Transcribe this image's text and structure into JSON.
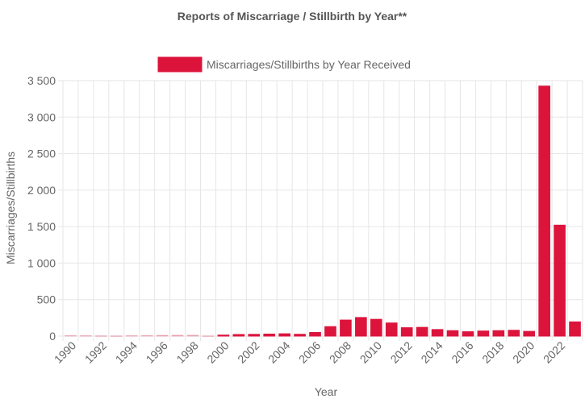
{
  "chart_data": {
    "type": "bar",
    "title": "Reports of Miscarriage / Stillbirth by Year**",
    "xlabel": "Year",
    "ylabel": "Miscarriages/Stillbirths",
    "ylim": [
      0,
      3500
    ],
    "yticks": [
      "0",
      "500",
      "1 000",
      "1 500",
      "2 000",
      "2 500",
      "3 000",
      "3 500"
    ],
    "legend_position": "top",
    "grid": true,
    "categories": [
      "1990",
      "1991",
      "1992",
      "1993",
      "1994",
      "1995",
      "1996",
      "1997",
      "1998",
      "1999",
      "2000",
      "2001",
      "2002",
      "2003",
      "2004",
      "2005",
      "2006",
      "2007",
      "2008",
      "2009",
      "2010",
      "2011",
      "2012",
      "2013",
      "2014",
      "2015",
      "2016",
      "2017",
      "2018",
      "2019",
      "2020",
      "2021",
      "2022",
      "2023"
    ],
    "tick_labels_shown": [
      "1990",
      "1992",
      "1994",
      "1996",
      "1998",
      "2000",
      "2002",
      "2004",
      "2006",
      "2008",
      "2010",
      "2012",
      "2014",
      "2016",
      "2018",
      "2020",
      "2022"
    ],
    "series": [
      {
        "name": "Miscarriages/Stillbirths by Year Received",
        "color": "#dc143c",
        "values": [
          6,
          5,
          3,
          2,
          5,
          7,
          10,
          12,
          12,
          2,
          14,
          22,
          24,
          28,
          32,
          25,
          50,
          130,
          220,
          255,
          230,
          180,
          115,
          120,
          90,
          75,
          60,
          70,
          75,
          80,
          65,
          3425,
          1520,
          195
        ]
      }
    ]
  }
}
